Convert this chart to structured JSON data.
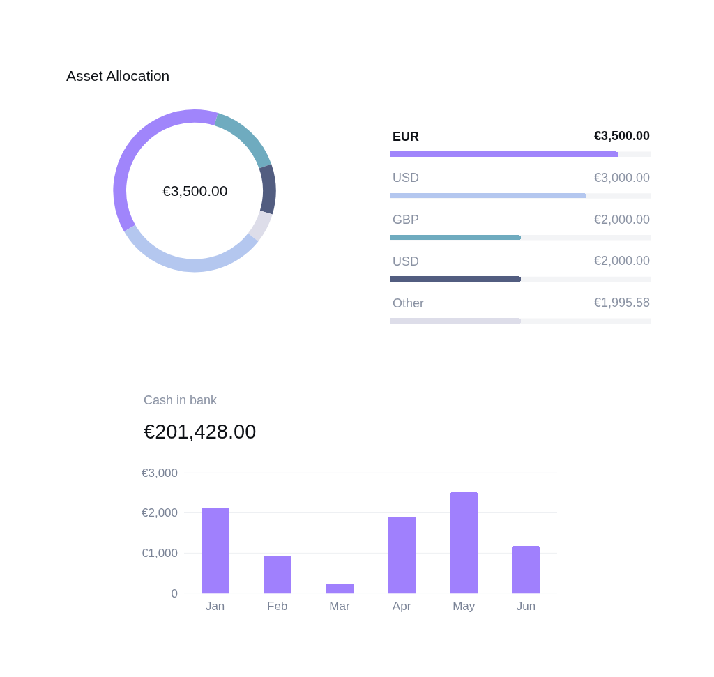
{
  "chart_data": [
    {
      "type": "donut",
      "title": "Asset Allocation",
      "categories": [
        null,
        null,
        null,
        null,
        null
      ],
      "values": [
        38,
        15,
        10,
        6,
        31
      ],
      "colors": [
        "#a085fb",
        "#6fabbf",
        "#525d80",
        "#dddde9",
        "#b4c7ef"
      ],
      "annotations": [
        "€3,500.00"
      ]
    },
    {
      "type": "bar",
      "orientation": "horizontal",
      "categories": [
        "EUR",
        "USD",
        "GBP",
        "USD",
        "Other"
      ],
      "values": [
        3500,
        3000,
        2000,
        2000,
        1995.58
      ],
      "colors": [
        "#a085fb",
        "#b4c7ef",
        "#6fabbf",
        "#525d80",
        "#dddde9"
      ],
      "value_labels": [
        "€3,500.00",
        "€3,000.00",
        "€2,000.00",
        "€2,000.00",
        "€1,995.58"
      ],
      "xlim": [
        0,
        4000
      ],
      "tick_labels": "y"
    },
    {
      "type": "bar",
      "title": "Cash in bank",
      "subtitle": "€201,428.00",
      "categories": [
        "Jan",
        "Feb",
        "Mar",
        "Apr",
        "May",
        "Jun"
      ],
      "values": [
        2140,
        950,
        260,
        1910,
        2520,
        1190
      ],
      "color": "#a080fd",
      "ylim": [
        0,
        3000
      ],
      "yticks": [
        0,
        {
          "value": 1000,
          "label": "€1,000"
        },
        {
          "value": 2000,
          "label": "€2,000"
        },
        {
          "value": 3000,
          "label": "€3,000"
        }
      ],
      "grid": "y"
    }
  ]
}
